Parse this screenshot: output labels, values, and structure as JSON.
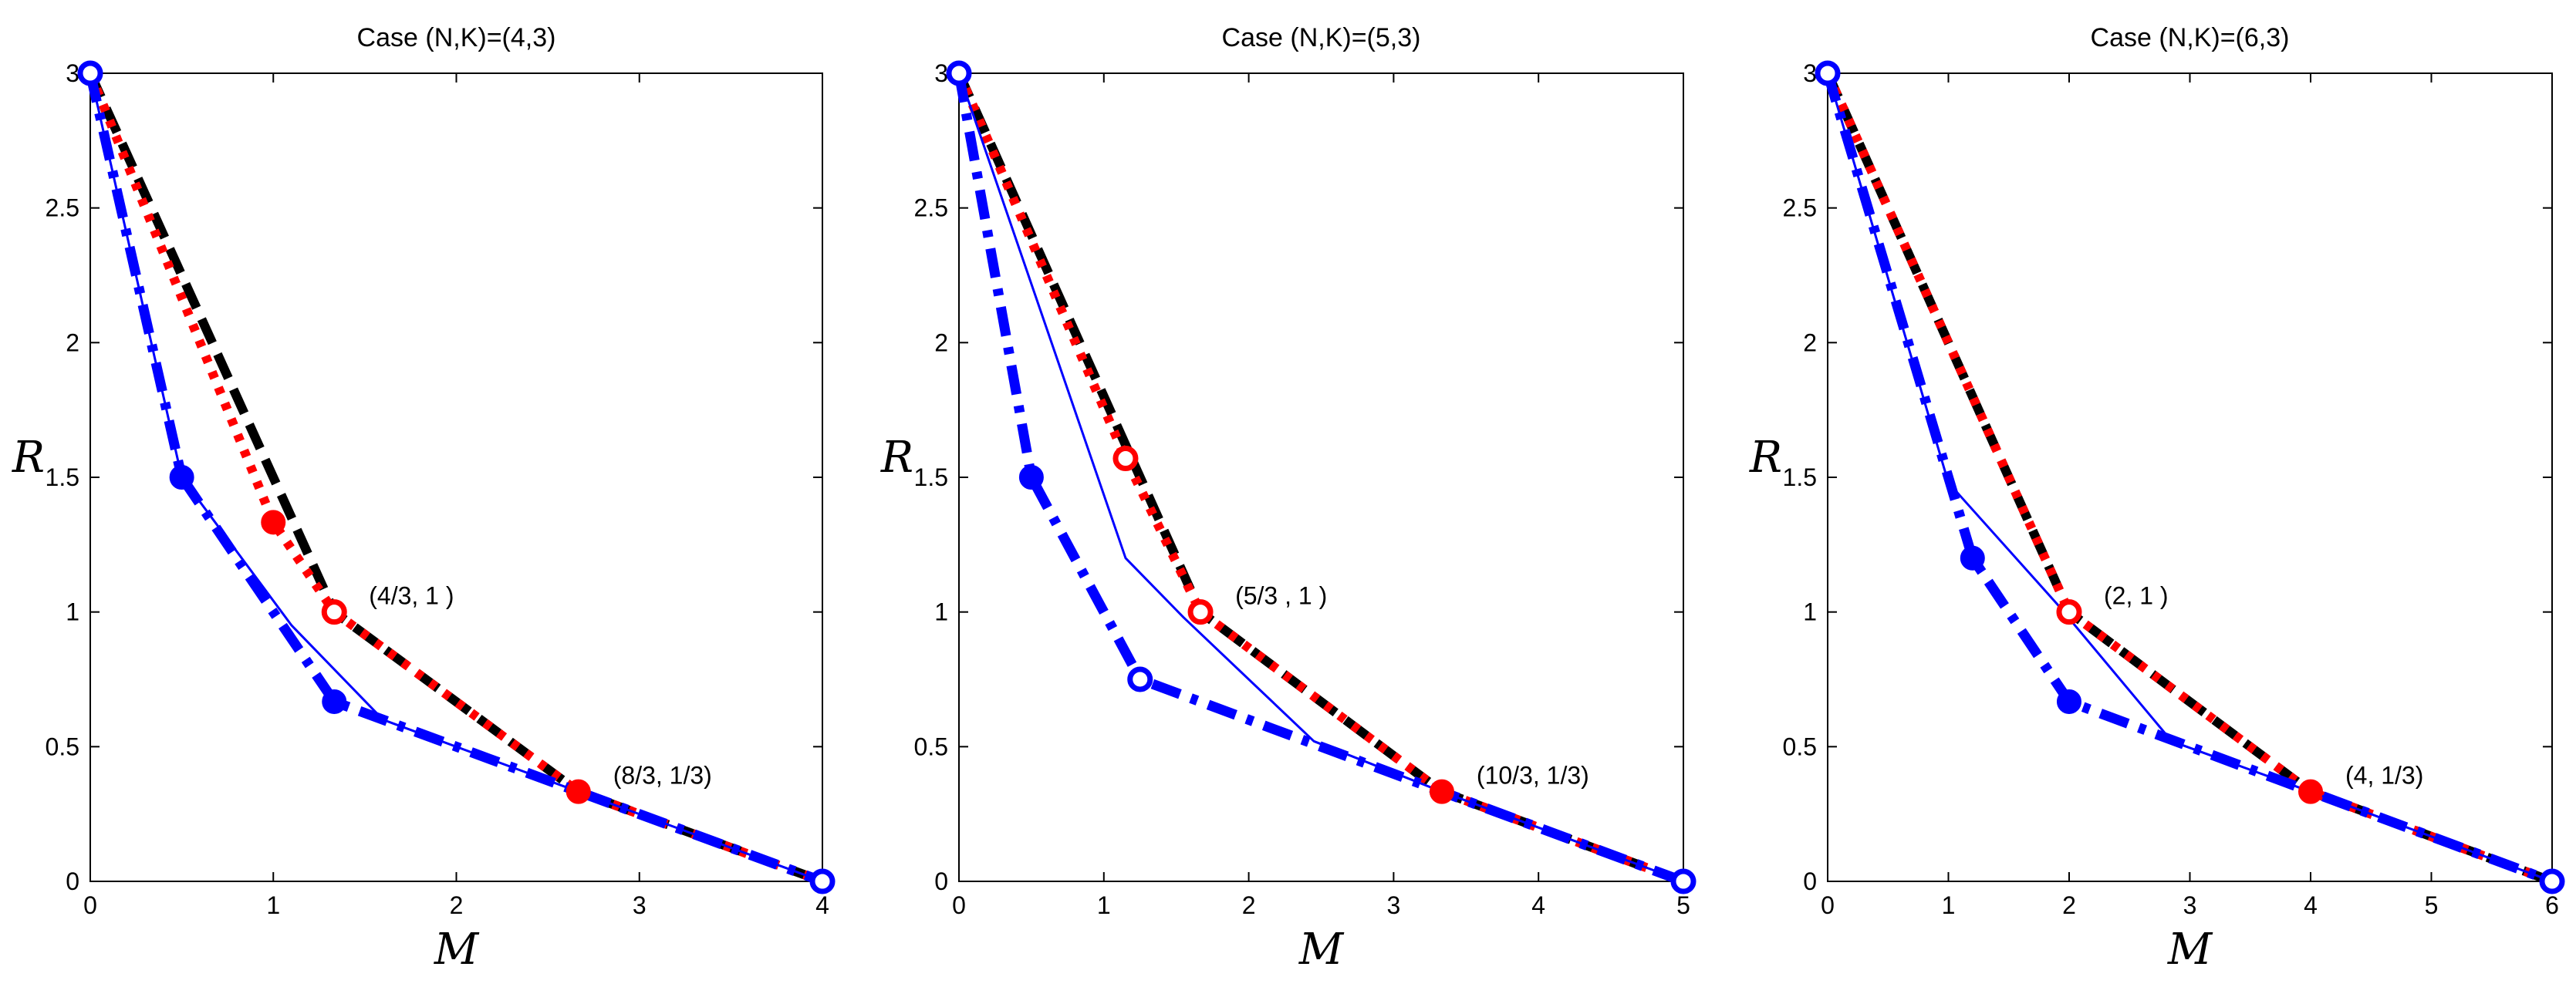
{
  "chart_data": [
    {
      "type": "line",
      "title": "Case (N,K)=(4,3)",
      "xlabel": "M",
      "ylabel": "R",
      "xlim": [
        0,
        4
      ],
      "ylim": [
        0,
        3
      ],
      "xticks": [
        "0",
        "1",
        "2",
        "3",
        "4"
      ],
      "yticks": [
        "0",
        "0.5",
        "1",
        "1.5",
        "2",
        "2.5",
        "3"
      ],
      "annotations": [
        {
          "text": "(4/3, 1  )",
          "x": 1.333,
          "y": 1
        },
        {
          "text": "(8/3, 1/3)",
          "x": 2.667,
          "y": 0.333
        }
      ],
      "series": [
        {
          "name": "black-dashed",
          "style": "dashed",
          "color": "#000000",
          "x": [
            0,
            1.333,
            2.667,
            4
          ],
          "y": [
            3,
            1,
            0.333,
            0
          ]
        },
        {
          "name": "red-dotted",
          "style": "dotted",
          "color": "#ff0000",
          "x": [
            0,
            1,
            1.333,
            2.667,
            4
          ],
          "y": [
            3,
            1.333,
            1,
            0.333,
            0
          ]
        },
        {
          "name": "blue-thin-solid",
          "style": "solid-thin",
          "color": "#0000ff",
          "x": [
            0,
            0.5,
            1.1,
            1.6,
            2.667,
            4
          ],
          "y": [
            3,
            1.5,
            0.95,
            0.6,
            0.333,
            0
          ]
        },
        {
          "name": "blue-dashdot",
          "style": "dashdot",
          "color": "#0000ff",
          "x": [
            0,
            0.5,
            1.333,
            2.667,
            4
          ],
          "y": [
            3,
            1.5,
            0.667,
            0.333,
            0
          ]
        }
      ],
      "markers": [
        {
          "x": 0,
          "y": 3,
          "color": "#0000ff",
          "filled": false
        },
        {
          "x": 4,
          "y": 0,
          "color": "#0000ff",
          "filled": false
        },
        {
          "x": 0.5,
          "y": 1.5,
          "color": "#0000ff",
          "filled": true
        },
        {
          "x": 1.333,
          "y": 0.667,
          "color": "#0000ff",
          "filled": true
        },
        {
          "x": 1,
          "y": 1.333,
          "color": "#ff0000",
          "filled": true
        },
        {
          "x": 1.333,
          "y": 1,
          "color": "#ff0000",
          "filled": false
        },
        {
          "x": 2.667,
          "y": 0.333,
          "color": "#ff0000",
          "filled": true
        }
      ]
    },
    {
      "type": "line",
      "title": "Case (N,K)=(5,3)",
      "xlabel": "M",
      "ylabel": "R",
      "xlim": [
        0,
        5
      ],
      "ylim": [
        0,
        3
      ],
      "xticks": [
        "0",
        "1",
        "2",
        "3",
        "4",
        "5"
      ],
      "yticks": [
        "0",
        "0.5",
        "1",
        "1.5",
        "2",
        "2.5",
        "3"
      ],
      "annotations": [
        {
          "text": "(5/3 , 1  )",
          "x": 1.667,
          "y": 1
        },
        {
          "text": "(10/3, 1/3)",
          "x": 3.333,
          "y": 0.333
        }
      ],
      "series": [
        {
          "name": "black-dashed",
          "style": "dashed",
          "color": "#000000",
          "x": [
            0,
            1.667,
            3.333,
            5
          ],
          "y": [
            3,
            1,
            0.333,
            0
          ]
        },
        {
          "name": "red-dotted",
          "style": "dotted",
          "color": "#ff0000",
          "x": [
            0,
            1.15,
            1.667,
            3.333,
            5
          ],
          "y": [
            3,
            1.57,
            1,
            0.333,
            0
          ]
        },
        {
          "name": "blue-thin-solid",
          "style": "solid-thin",
          "color": "#0000ff",
          "x": [
            0,
            1.15,
            1.55,
            2.45,
            3.333,
            5
          ],
          "y": [
            3,
            1.2,
            0.98,
            0.52,
            0.333,
            0
          ]
        },
        {
          "name": "blue-dashdot",
          "style": "dashdot",
          "color": "#0000ff",
          "x": [
            0,
            0.5,
            1.25,
            3.333,
            5
          ],
          "y": [
            3,
            1.5,
            0.75,
            0.333,
            0
          ]
        }
      ],
      "markers": [
        {
          "x": 0,
          "y": 3,
          "color": "#0000ff",
          "filled": false
        },
        {
          "x": 5,
          "y": 0,
          "color": "#0000ff",
          "filled": false
        },
        {
          "x": 0.5,
          "y": 1.5,
          "color": "#0000ff",
          "filled": true
        },
        {
          "x": 1.25,
          "y": 0.75,
          "color": "#0000ff",
          "filled": false
        },
        {
          "x": 1.15,
          "y": 1.57,
          "color": "#ff0000",
          "filled": false
        },
        {
          "x": 1.667,
          "y": 1,
          "color": "#ff0000",
          "filled": false
        },
        {
          "x": 3.333,
          "y": 0.333,
          "color": "#ff0000",
          "filled": true
        }
      ]
    },
    {
      "type": "line",
      "title": "Case (N,K)=(6,3)",
      "xlabel": "M",
      "ylabel": "R",
      "xlim": [
        0,
        6
      ],
      "ylim": [
        0,
        3
      ],
      "xticks": [
        "0",
        "1",
        "2",
        "3",
        "4",
        "5",
        "6"
      ],
      "yticks": [
        "0",
        "0.5",
        "1",
        "1.5",
        "2",
        "2.5",
        "3"
      ],
      "annotations": [
        {
          "text": "(2, 1  )",
          "x": 2,
          "y": 1
        },
        {
          "text": "(4, 1/3)",
          "x": 4,
          "y": 0.333
        }
      ],
      "series": [
        {
          "name": "black-dashed",
          "style": "dashed",
          "color": "#000000",
          "x": [
            0,
            2,
            4,
            6
          ],
          "y": [
            3,
            1,
            0.333,
            0
          ]
        },
        {
          "name": "red-dotted",
          "style": "dotted",
          "color": "#ff0000",
          "x": [
            0,
            2,
            4,
            6
          ],
          "y": [
            3,
            1,
            0.333,
            0
          ]
        },
        {
          "name": "blue-thin-solid",
          "style": "solid-thin",
          "color": "#0000ff",
          "x": [
            0,
            1,
            1.9,
            2.85,
            4,
            6
          ],
          "y": [
            3,
            1.48,
            1.03,
            0.52,
            0.333,
            0
          ]
        },
        {
          "name": "blue-dashdot",
          "style": "dashdot",
          "color": "#0000ff",
          "x": [
            0,
            1.2,
            2,
            4,
            6
          ],
          "y": [
            3,
            1.2,
            0.667,
            0.333,
            0
          ]
        }
      ],
      "markers": [
        {
          "x": 0,
          "y": 3,
          "color": "#0000ff",
          "filled": false
        },
        {
          "x": 6,
          "y": 0,
          "color": "#0000ff",
          "filled": false
        },
        {
          "x": 1.2,
          "y": 1.2,
          "color": "#0000ff",
          "filled": true
        },
        {
          "x": 2,
          "y": 0.667,
          "color": "#0000ff",
          "filled": true
        },
        {
          "x": 2,
          "y": 1,
          "color": "#ff0000",
          "filled": false
        },
        {
          "x": 4,
          "y": 0.333,
          "color": "#ff0000",
          "filled": true
        }
      ]
    }
  ]
}
